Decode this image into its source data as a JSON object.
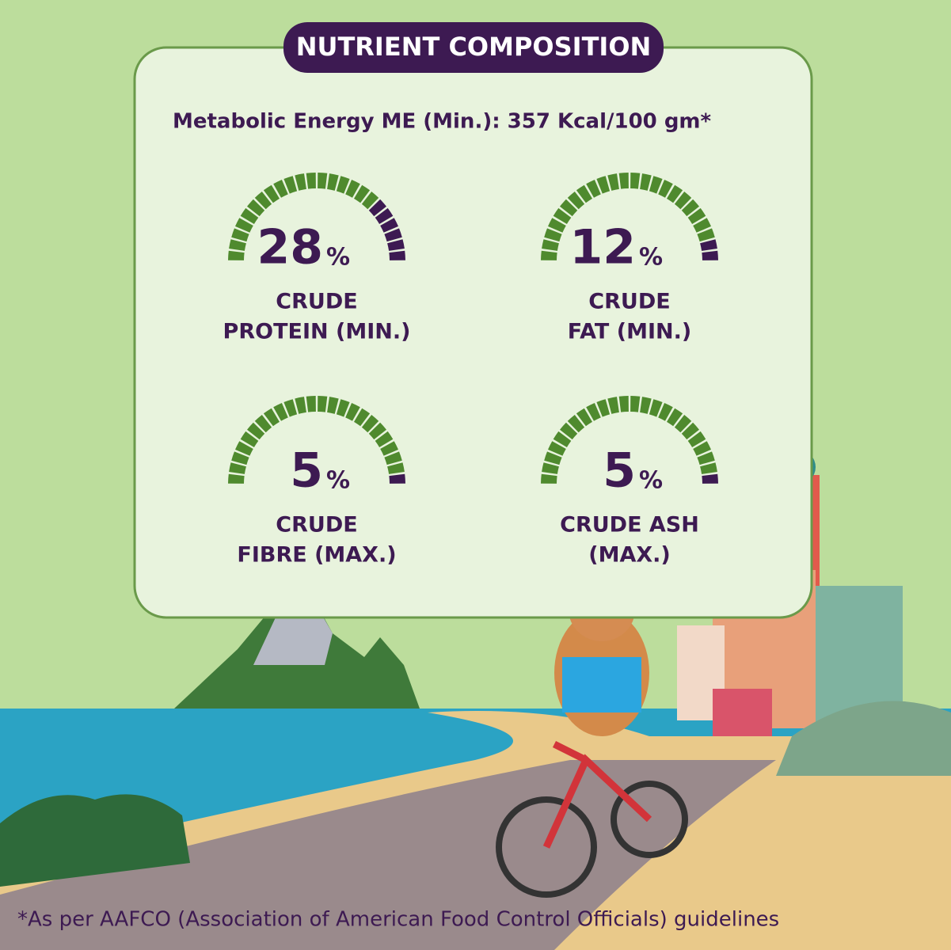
{
  "header": {
    "title": "NUTRIENT COMPOSITION",
    "energy": "Metabolic Energy ME (Min.): 357 Kcal/100 gm*"
  },
  "gauges": [
    {
      "value": 28,
      "unit": "%",
      "label_lines": [
        "CRUDE",
        "PROTEIN (MIN.)"
      ]
    },
    {
      "value": 12,
      "unit": "%",
      "label_lines": [
        "CRUDE",
        "FAT (MIN.)"
      ]
    },
    {
      "value": 5,
      "unit": "%",
      "label_lines": [
        "CRUDE",
        "FIBRE (MAX.)"
      ]
    },
    {
      "value": 5,
      "unit": "%",
      "label_lines": [
        "CRUDE ASH",
        "(MAX.)"
      ]
    }
  ],
  "footnote": "*As per AAFCO (Association of American Food Control Officials) guidelines"
}
